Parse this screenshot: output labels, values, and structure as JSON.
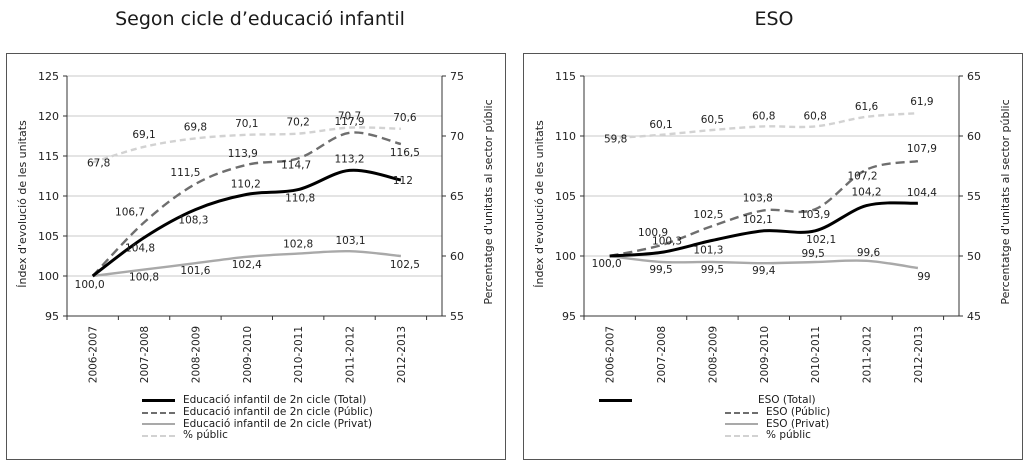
{
  "chart_data": [
    {
      "type": "line",
      "title": "Segon cicle d’educació infantil",
      "ylabel": "Índex d'evolució de les unitats",
      "y2label": "Percentatge d'unitats al sector públic",
      "categories": [
        "2006-2007",
        "2007-2008",
        "2008-2009",
        "2009-2010",
        "2010-2011",
        "2011-2012",
        "2012-2013"
      ],
      "ylim": [
        95,
        125
      ],
      "yticks": [
        "95",
        "100",
        "105",
        "110",
        "115",
        "120",
        "125"
      ],
      "y2lim": [
        55,
        75
      ],
      "y2ticks": [
        "55",
        "60",
        "65",
        "70",
        "75"
      ],
      "series": [
        {
          "name": "Educació infantil de 2n cicle (Total)",
          "axis": "left",
          "style": "total",
          "values": [
            100.0,
            104.8,
            108.3,
            110.2,
            110.8,
            113.2,
            112
          ],
          "labels": [
            "100,0",
            "104,8",
            "108,3",
            "110,2",
            "110,8",
            "113,2",
            "112"
          ]
        },
        {
          "name": "Educació infantil de 2n cicle (Públic)",
          "axis": "left",
          "style": "public",
          "values": [
            100.0,
            106.7,
            111.5,
            113.9,
            114.7,
            117.9,
            116.5
          ],
          "labels": [
            "",
            "106,7",
            "111,5",
            "113,9",
            "114,7",
            "117,9",
            "116,5"
          ]
        },
        {
          "name": "Educació infantil de 2n cicle (Privat)",
          "axis": "left",
          "style": "private",
          "values": [
            100.0,
            100.8,
            101.6,
            102.4,
            102.8,
            103.1,
            102.5
          ],
          "labels": [
            "",
            "100,8",
            "101,6",
            "102,4",
            "102,8",
            "103,1",
            "102,5"
          ]
        },
        {
          "name": "% públic",
          "axis": "right",
          "style": "pct",
          "values": [
            67.8,
            69.1,
            69.8,
            70.1,
            70.2,
            70.7,
            70.6
          ],
          "labels": [
            "67,8",
            "69,1",
            "69,8",
            "70,1",
            "70,2",
            "70,7",
            "70,6"
          ]
        }
      ]
    },
    {
      "type": "line",
      "title": "ESO",
      "ylabel": "Índex d'evolució de les unitats",
      "y2label": "Percentatge d'unitats al sector públic",
      "categories": [
        "2006-2007",
        "2007-2008",
        "2008-2009",
        "2009-2010",
        "2010-2011",
        "2011-2012",
        "2012-2013"
      ],
      "ylim": [
        95,
        115
      ],
      "yticks": [
        "95",
        "100",
        "105",
        "110",
        "115"
      ],
      "y2lim": [
        45,
        65
      ],
      "y2ticks": [
        "45",
        "50",
        "55",
        "60",
        "65"
      ],
      "series": [
        {
          "name": "ESO (Total)",
          "axis": "left",
          "style": "total",
          "values": [
            100.0,
            100.3,
            101.3,
            102.1,
            102.1,
            104.2,
            104.4
          ],
          "labels": [
            "100,0",
            "100,3",
            "101,3",
            "102,1",
            "102,1",
            "104,2",
            "104,4"
          ]
        },
        {
          "name": "ESO (Públic)",
          "axis": "left",
          "style": "public",
          "values": [
            100.0,
            100.9,
            102.5,
            103.8,
            103.9,
            107.2,
            107.9
          ],
          "labels": [
            "",
            "100,9",
            "102,5",
            "103,8",
            "103,9",
            "107,2",
            "107,9"
          ]
        },
        {
          "name": "ESO (Privat)",
          "axis": "left",
          "style": "private",
          "values": [
            100.0,
            99.5,
            99.5,
            99.4,
            99.5,
            99.6,
            99
          ],
          "labels": [
            "",
            "99,5",
            "99,5",
            "99,4",
            "99,5",
            "99,6",
            "99"
          ]
        },
        {
          "name": "% públic",
          "axis": "right",
          "style": "pct",
          "values": [
            59.8,
            60.1,
            60.5,
            60.8,
            60.8,
            61.6,
            61.9
          ],
          "labels": [
            "59,8",
            "60,1",
            "60,5",
            "60,8",
            "60,8",
            "61,6",
            "61,9"
          ]
        }
      ]
    }
  ]
}
